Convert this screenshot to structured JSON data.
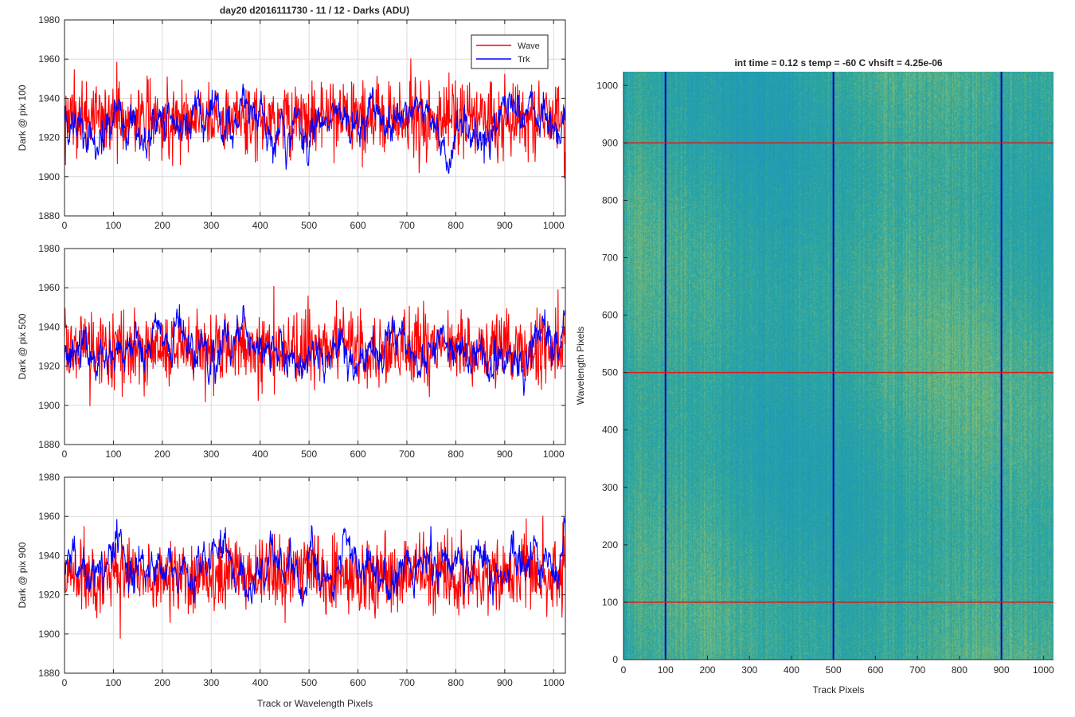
{
  "figure": {
    "title": "day20 d2016111730 - 11 / 12 - Darks (ADU)"
  },
  "chart_data": [
    {
      "type": "line",
      "ylabel": "Dark @ pix 100",
      "xlabel": "",
      "xlim": [
        0,
        1024
      ],
      "ylim": [
        1880,
        1980
      ],
      "xticks": [
        0,
        100,
        200,
        300,
        400,
        500,
        600,
        700,
        800,
        900,
        1000
      ],
      "yticks": [
        1880,
        1900,
        1920,
        1940,
        1960,
        1980
      ],
      "grid": true,
      "legend": {
        "placement": "top-right",
        "entries": [
          "Wave",
          "Trk"
        ]
      },
      "series": [
        {
          "name": "Wave",
          "color": "#ff0000",
          "values_summary": {
            "n_points": 1024,
            "mean": 1930,
            "min": 1886,
            "max": 1965
          }
        },
        {
          "name": "Trk",
          "color": "#0000ff",
          "values_summary": {
            "n_points": 1024,
            "mean": 1928,
            "min": 1898,
            "max": 1971
          }
        }
      ]
    },
    {
      "type": "line",
      "ylabel": "Dark @ pix 500",
      "xlabel": "",
      "xlim": [
        0,
        1024
      ],
      "ylim": [
        1880,
        1980
      ],
      "xticks": [
        0,
        100,
        200,
        300,
        400,
        500,
        600,
        700,
        800,
        900,
        1000
      ],
      "yticks": [
        1880,
        1900,
        1920,
        1940,
        1960,
        1980
      ],
      "grid": true,
      "series": [
        {
          "name": "Wave",
          "color": "#ff0000",
          "values_summary": {
            "n_points": 1024,
            "mean": 1929,
            "min": 1883,
            "max": 1968
          }
        },
        {
          "name": "Trk",
          "color": "#0000ff",
          "values_summary": {
            "n_points": 1024,
            "mean": 1928,
            "min": 1890,
            "max": 1956
          }
        }
      ]
    },
    {
      "type": "line",
      "ylabel": "Dark @ pix 900",
      "xlabel": "Track or Wavelength Pixels",
      "xlim": [
        0,
        1024
      ],
      "ylim": [
        1880,
        1980
      ],
      "xticks": [
        0,
        100,
        200,
        300,
        400,
        500,
        600,
        700,
        800,
        900,
        1000
      ],
      "yticks": [
        1880,
        1900,
        1920,
        1940,
        1960,
        1980
      ],
      "grid": true,
      "series": [
        {
          "name": "Wave",
          "color": "#ff0000",
          "values_summary": {
            "n_points": 1024,
            "mean": 1930,
            "min": 1889,
            "max": 1963
          }
        },
        {
          "name": "Trk",
          "color": "#0000ff",
          "values_summary": {
            "n_points": 1024,
            "mean": 1934,
            "min": 1905,
            "max": 1965
          }
        }
      ]
    },
    {
      "type": "heatmap",
      "title": "int time = 0.12 s    temp = -60 C    vhsift = 4.25e-06",
      "xlabel": "Track Pixels",
      "ylabel": "Wavelength Pixels",
      "xlim": [
        0,
        1024
      ],
      "ylim": [
        0,
        1024
      ],
      "xticks": [
        0,
        100,
        200,
        300,
        400,
        500,
        600,
        700,
        800,
        900,
        1000
      ],
      "yticks": [
        0,
        100,
        200,
        300,
        400,
        500,
        600,
        700,
        800,
        900,
        1000
      ],
      "colormap": "parula",
      "base_color": "#2aa6a0",
      "high_color": "#b4c85a",
      "low_color": "#1a8fc8",
      "overlay_vertical_lines": {
        "x": [
          100,
          500,
          900
        ],
        "color": "#0000c8"
      },
      "overlay_horizontal_lines": {
        "y": [
          100,
          500,
          900
        ],
        "color": "#e01a1a"
      }
    }
  ]
}
